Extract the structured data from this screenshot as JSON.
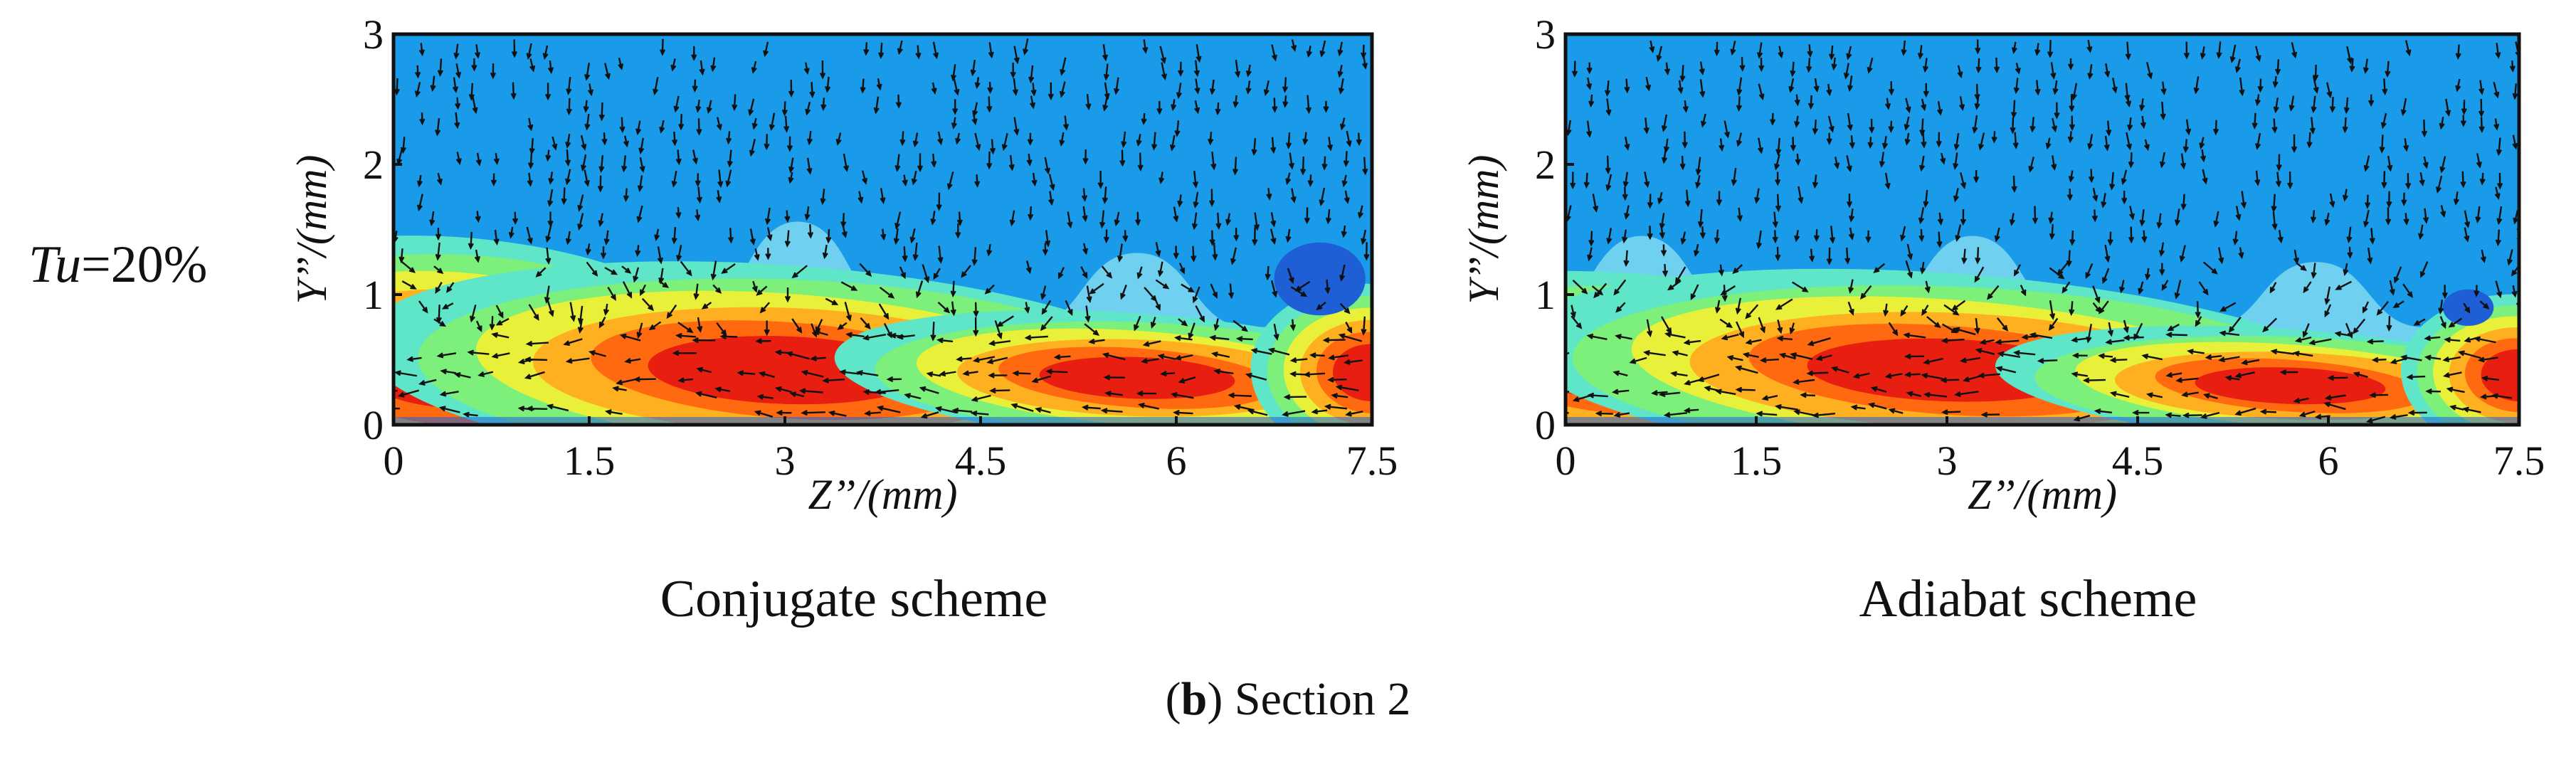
{
  "row_label": {
    "variable": "Tu",
    "value": "=20%"
  },
  "caption": {
    "letter": "b",
    "open_paren": "(",
    "close_paren": ")",
    "text": " Section 2"
  },
  "colors": {
    "background": "#1a9bea",
    "low": "#1f5fd6",
    "contour_levels": [
      "#6fd0f0",
      "#5fe6c8",
      "#7cf07a",
      "#e8f03a",
      "#ffb020",
      "#ff6a10",
      "#e81e10"
    ],
    "vectors": "#111111"
  },
  "chart_data": [
    {
      "type": "heatmap",
      "subtype": "contour with velocity vectors",
      "title": "Conjugate scheme",
      "xlabel": "Z’’/(mm)",
      "ylabel": "Y’’/(mm)",
      "xlim": [
        0,
        7.5
      ],
      "ylim": [
        0,
        3
      ],
      "xticks": [
        "0",
        "1.5",
        "3",
        "4.5",
        "6",
        "7.5"
      ],
      "yticks": [
        "0",
        "1",
        "2",
        "3"
      ],
      "legend": "none",
      "features": {
        "high_cores": [
          {
            "z": 0.45,
            "y": 0.45,
            "zr": 0.75,
            "yr": 0.32
          },
          {
            "z": 3.0,
            "y": 0.42,
            "zr": 1.05,
            "yr": 0.26
          },
          {
            "z": 5.7,
            "y": 0.36,
            "zr": 0.75,
            "yr": 0.16
          },
          {
            "z": 7.5,
            "y": 0.4,
            "zr": 0.3,
            "yr": 0.22
          }
        ],
        "boundary_crests": [
          {
            "z": 0.4,
            "y": 1.42
          },
          {
            "z": 3.1,
            "y": 1.56
          },
          {
            "z": 5.7,
            "y": 1.32
          }
        ],
        "low_spots": [
          {
            "z": 7.1,
            "y": 1.12,
            "zr": 0.35,
            "yr": 0.28
          }
        ]
      }
    },
    {
      "type": "heatmap",
      "subtype": "contour with velocity vectors",
      "title": "Adiabat scheme",
      "xlabel": "Z’’/(mm)",
      "ylabel": "Y’’/(mm)",
      "xlim": [
        0,
        7.5
      ],
      "ylim": [
        0,
        3
      ],
      "xticks": [
        "0",
        "1.5",
        "3",
        "4.5",
        "6",
        "7.5"
      ],
      "yticks": [
        "0",
        "1",
        "2",
        "3"
      ],
      "legend": "none",
      "features": {
        "high_cores": [
          {
            "z": 0.5,
            "y": 0.42,
            "zr": 0.8,
            "yr": 0.24
          },
          {
            "z": 3.0,
            "y": 0.42,
            "zr": 1.1,
            "yr": 0.24
          },
          {
            "z": 5.7,
            "y": 0.3,
            "zr": 0.75,
            "yr": 0.14
          },
          {
            "z": 7.5,
            "y": 0.38,
            "zr": 0.3,
            "yr": 0.2
          }
        ],
        "boundary_crests": [
          {
            "z": 0.6,
            "y": 1.45
          },
          {
            "z": 3.2,
            "y": 1.45
          },
          {
            "z": 5.9,
            "y": 1.25
          }
        ],
        "low_spots": [
          {
            "z": 7.1,
            "y": 0.9,
            "zr": 0.2,
            "yr": 0.14
          }
        ]
      }
    }
  ]
}
